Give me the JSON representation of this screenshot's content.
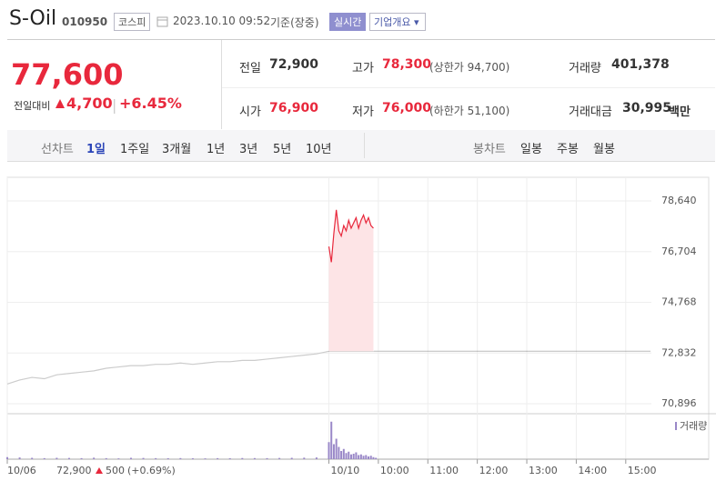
{
  "header": {
    "name": "S-Oil",
    "code": "010950",
    "market": "코스피",
    "datetime": "2023.10.10 09:52",
    "basis": "기준(장중)",
    "realtime": "실시간",
    "overview": "기업개요"
  },
  "price": {
    "current": "77,600",
    "change_label": "전일대비",
    "change": "4,700",
    "change_pct": "+6.45%"
  },
  "quote": [
    {
      "label": "전일",
      "value": "72,900"
    },
    {
      "label": "고가",
      "value": "78,300",
      "note": "(상한가 94,700)"
    },
    {
      "label": "거래량",
      "value": "401,378"
    },
    {
      "label": "시가",
      "value": "76,900"
    },
    {
      "label": "저가",
      "value": "76,000",
      "note": "(하한가 51,100)"
    },
    {
      "label": "거래대금",
      "value": "30,995",
      "unit": "백만"
    }
  ],
  "tabs": {
    "line_label": "선차트",
    "line_tabs": [
      "1일",
      "1주일",
      "3개월",
      "1년",
      "3년",
      "5년",
      "10년"
    ],
    "candle_label": "봉차트",
    "candle_tabs": [
      "일봉",
      "주봉",
      "월봉"
    ]
  },
  "bottom_info": {
    "price": "72,900",
    "change": "500",
    "change_pct": "(+0.69%)"
  },
  "chart_data": {
    "type": "line",
    "xlim": [
      0,
      13
    ],
    "xticks": [
      {
        "value": 0,
        "label": "10/06"
      },
      {
        "value": 6.5,
        "label": "10/10"
      },
      {
        "value": 7.5,
        "label": "10:00"
      },
      {
        "value": 8.5,
        "label": "11:00"
      },
      {
        "value": 9.5,
        "label": "12:00"
      },
      {
        "value": 10.5,
        "label": "13:00"
      },
      {
        "value": 11.5,
        "label": "14:00"
      },
      {
        "value": 12.5,
        "label": "15:00"
      }
    ],
    "ylim": [
      70514,
      79543
    ],
    "yticks": [
      {
        "value": 78640,
        "label": "78,640"
      },
      {
        "value": 76704,
        "label": "76,704"
      },
      {
        "value": 74768,
        "label": "74,768"
      },
      {
        "value": 72832,
        "label": "72,832"
      },
      {
        "value": 70896,
        "label": "70,896"
      }
    ],
    "grid": true,
    "reference": 72900,
    "series": [
      {
        "color": "#cccccc",
        "x": [
          0,
          0.25,
          0.5,
          0.75,
          1,
          1.25,
          1.5,
          1.75,
          2,
          2.25,
          2.5,
          2.75,
          3,
          3.25,
          3.5,
          3.75,
          4,
          4.25,
          4.5,
          4.75,
          5,
          5.25,
          5.5,
          5.75,
          6,
          6.25,
          6.5
        ],
        "values": [
          71650,
          71800,
          71900,
          71850,
          72000,
          72050,
          72100,
          72150,
          72250,
          72300,
          72350,
          72350,
          72400,
          72400,
          72450,
          72400,
          72450,
          72500,
          72500,
          72550,
          72550,
          72600,
          72650,
          72700,
          72750,
          72800,
          72900
        ]
      },
      {
        "color": "#e8283c",
        "fill": "#fde4e6",
        "x": [
          6.5,
          6.55,
          6.6,
          6.65,
          6.7,
          6.75,
          6.8,
          6.85,
          6.9,
          6.95,
          7,
          7.05,
          7.1,
          7.15,
          7.2,
          7.25,
          7.3,
          7.35,
          7.4
        ],
        "values": [
          76900,
          76300,
          77400,
          78300,
          77500,
          77300,
          77700,
          77500,
          77900,
          77600,
          77800,
          78000,
          77600,
          77900,
          78100,
          77800,
          78000,
          77700,
          77600
        ]
      }
    ],
    "volume": {
      "name": "거래량",
      "color": "#9a88c8",
      "ylim": [
        0,
        60000
      ],
      "x": [
        0,
        0.25,
        0.5,
        0.75,
        1,
        1.25,
        1.5,
        1.75,
        2,
        2.25,
        2.5,
        2.75,
        3,
        3.25,
        3.5,
        3.75,
        4,
        4.25,
        4.5,
        4.75,
        5,
        5.25,
        5.5,
        5.75,
        6,
        6.25,
        6.5,
        6.55,
        6.6,
        6.65,
        6.7,
        6.75,
        6.8,
        6.85,
        6.9,
        6.95,
        7,
        7.05,
        7.1,
        7.15,
        7.2,
        7.25,
        7.3,
        7.35,
        7.4,
        7.45
      ],
      "values": [
        3000,
        2500,
        2000,
        1500,
        2000,
        1800,
        1500,
        2200,
        1500,
        1200,
        2000,
        1800,
        1500,
        1400,
        1600,
        1300,
        1200,
        1500,
        1400,
        1700,
        1600,
        1500,
        1800,
        2000,
        2200,
        2500,
        25000,
        55000,
        22000,
        30000,
        18000,
        12000,
        15000,
        9000,
        11000,
        7000,
        8000,
        10000,
        6000,
        7000,
        5000,
        6000,
        4000,
        5000,
        3000,
        2000
      ]
    }
  }
}
